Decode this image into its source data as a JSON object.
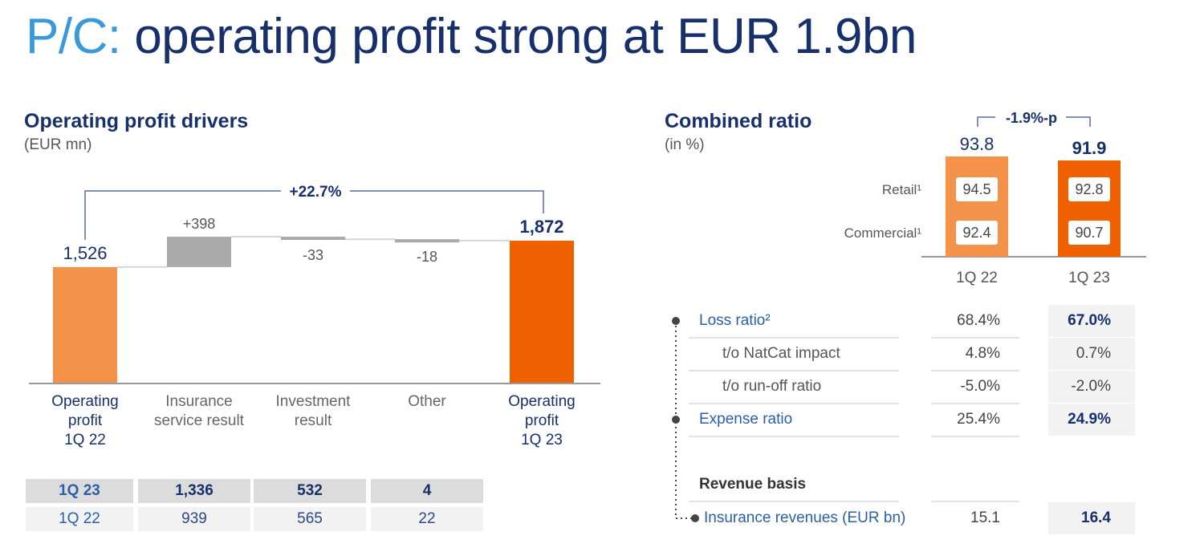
{
  "slide": {
    "title_prefix": "P/C:",
    "title_main": "operating profit strong at EUR 1.9bn"
  },
  "left_panel": {
    "title": "Operating profit drivers",
    "subtitle": "(EUR mn)",
    "change_label": "+22.7%"
  },
  "right_panel": {
    "title": "Combined ratio",
    "subtitle": "(in %)",
    "change_label": "-1.9%-p"
  },
  "chart_data": [
    {
      "type": "bar",
      "subtype": "waterfall",
      "title": "Operating profit drivers",
      "unit": "(EUR mn)",
      "categories": [
        "Operating profit 1Q 22",
        "Insurance service result",
        "Investment result",
        "Other",
        "Operating profit 1Q 23"
      ],
      "category_label_lines": [
        [
          "Operating",
          "profit",
          "1Q 22"
        ],
        [
          "Insurance",
          "service result"
        ],
        [
          "Investment",
          "result"
        ],
        [
          "Other"
        ],
        [
          "Operating",
          "profit",
          "1Q 23"
        ]
      ],
      "values": [
        1526,
        398,
        -33,
        -18,
        1872
      ],
      "value_labels": [
        "1,526",
        "+398",
        "-33",
        "-18",
        "1,872"
      ],
      "bar_kinds": [
        "total",
        "delta",
        "delta",
        "delta",
        "total"
      ],
      "colors": {
        "start": "#f5924a",
        "end": "#ee6000",
        "delta": "#aaaaaa",
        "label_blue": "#17306b"
      },
      "ylim": [
        0,
        2000
      ],
      "annotation": "+22.7%",
      "table": {
        "rows": [
          {
            "label": "1Q 23",
            "values": [
              "1,336",
              "532",
              "4"
            ]
          },
          {
            "label": "1Q 22",
            "values": [
              "939",
              "565",
              "22"
            ]
          }
        ]
      }
    },
    {
      "type": "bar",
      "subtype": "stacked-combined-ratio",
      "title": "Combined ratio",
      "unit": "(in %)",
      "categories": [
        "1Q 22",
        "1Q 23"
      ],
      "values": [
        93.8,
        91.9
      ],
      "series": [
        {
          "name": "Retail¹",
          "values": [
            94.5,
            92.8
          ]
        },
        {
          "name": "Commercial¹",
          "values": [
            92.4,
            90.7
          ]
        }
      ],
      "colors": [
        "#f5924a",
        "#ee6000"
      ],
      "annotation": "-1.9%-p",
      "table": {
        "rows": [
          {
            "label": "Loss ratio²",
            "values": [
              "68.4%",
              "67.0%"
            ],
            "kind": "main"
          },
          {
            "label": "t/o NatCat impact",
            "values": [
              "4.8%",
              "0.7%"
            ],
            "kind": "sub"
          },
          {
            "label": "t/o run-off ratio",
            "values": [
              "-5.0%",
              "-2.0%"
            ],
            "kind": "sub"
          },
          {
            "label": "Expense ratio",
            "values": [
              "25.4%",
              "24.9%"
            ],
            "kind": "main"
          }
        ],
        "revenue_heading": "Revenue basis",
        "revenue_row": {
          "label": "Insurance revenues (EUR bn)",
          "values": [
            "15.1",
            "16.4"
          ]
        }
      }
    }
  ]
}
